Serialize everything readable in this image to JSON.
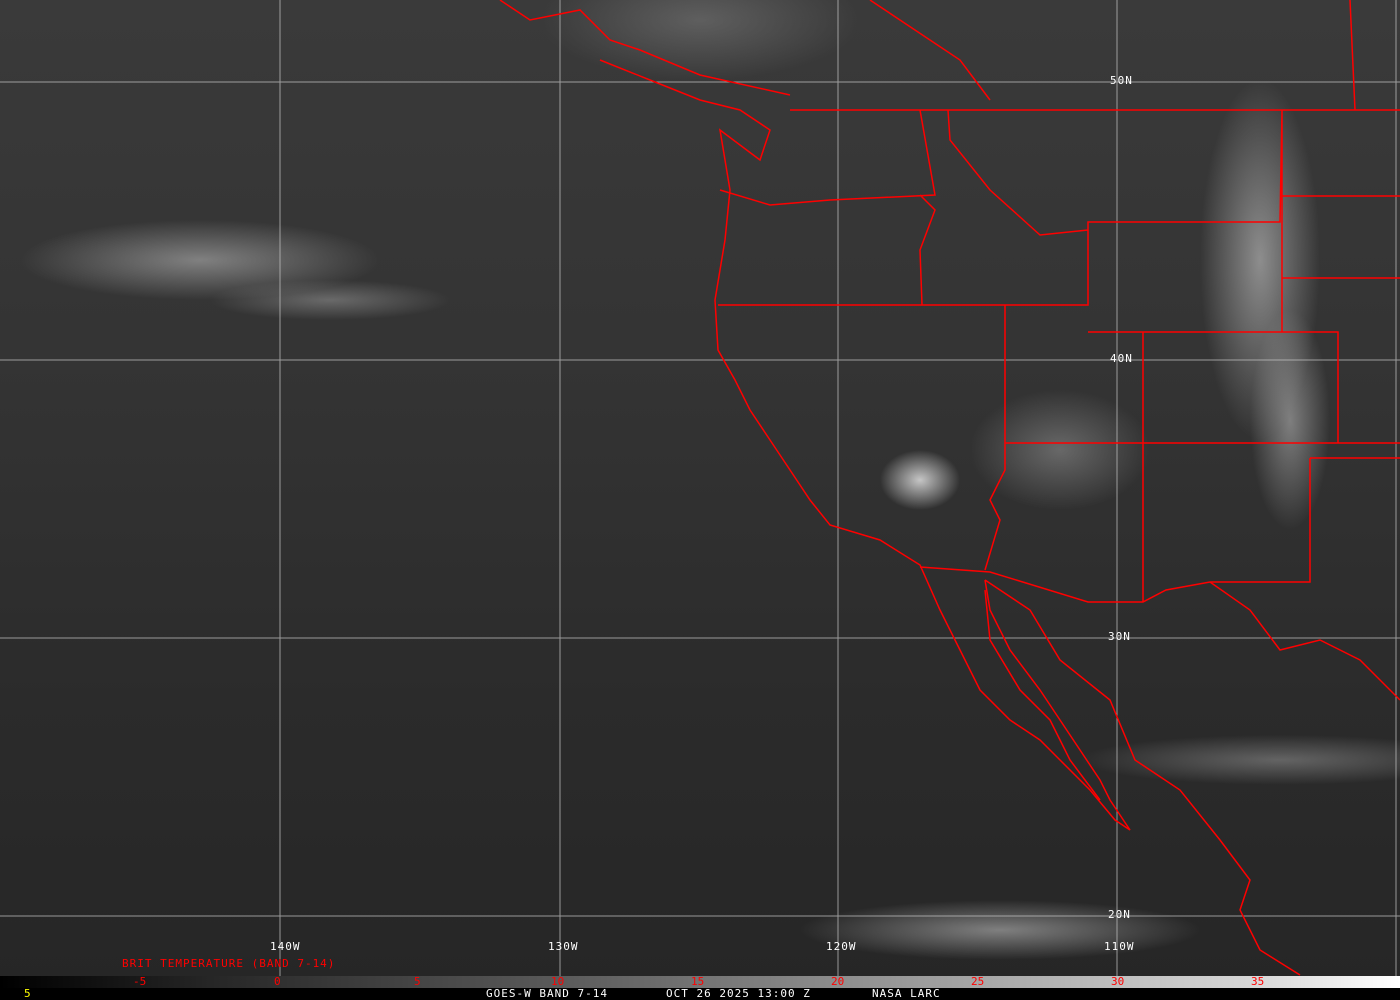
{
  "map": {
    "type": "satellite-image",
    "boundary_color": "#ff0000",
    "grid_color": "#c8c8c8",
    "lat_labels": [
      "50N",
      "40N",
      "30N",
      "20N"
    ],
    "lon_labels": [
      "140W",
      "130W",
      "120W",
      "110W"
    ]
  },
  "colorbar": {
    "title": "BRIT TEMPERATURE (BAND 7-14)",
    "ticks": [
      "-5",
      "0",
      "5",
      "10",
      "15",
      "20",
      "25",
      "30",
      "35"
    ],
    "tick_color": "#ff0000",
    "range": [
      -10,
      40
    ]
  },
  "footer": {
    "left_value": "5",
    "product": "GOES-W BAND 7-14",
    "datetime": "OCT 26 2025 13:00 Z",
    "source": "NASA LARC"
  }
}
